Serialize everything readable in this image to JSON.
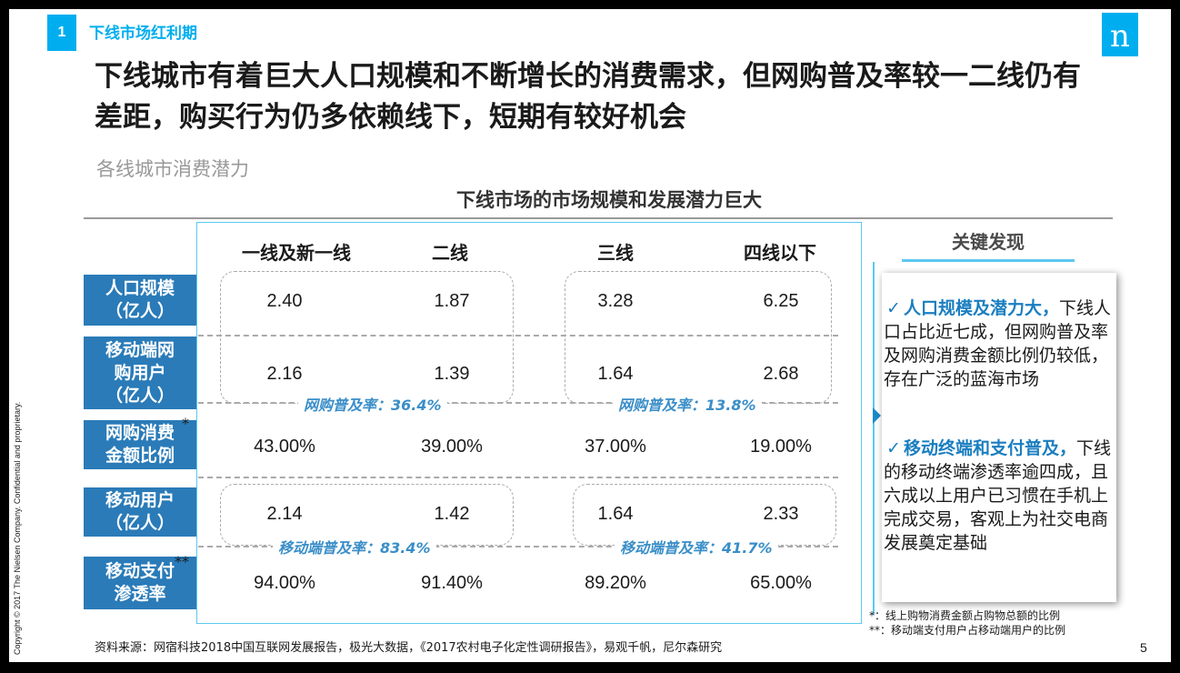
{
  "copyright": "Copyright © 2017 The Nielsen Company. Confidential and proprietary.",
  "section": {
    "number": "1",
    "title": "下线市场红利期"
  },
  "logo_letter": "n",
  "headline": "下线城市有着巨大人口规模和不断增长的消费需求，但网购普及率较一二线仍有差距，购买行为仍多依赖线下，短期有较好机会",
  "subhead": "各线城市消费潜力",
  "table": {
    "title": "下线市场的市场规模和发展潜力巨大",
    "columns": [
      "一线及新一线",
      "二线",
      "三线",
      "四线以下"
    ],
    "rows": [
      {
        "label": "人口规模\n（亿人）",
        "values": [
          "2.40",
          "1.87",
          "3.28",
          "6.25"
        ]
      },
      {
        "label": "移动端网\n购用户\n（亿人）",
        "values": [
          "2.16",
          "1.39",
          "1.64",
          "2.68"
        ]
      },
      {
        "label": "网购消费\n金额比例",
        "star": "*",
        "values": [
          "43.00%",
          "39.00%",
          "37.00%",
          "19.00%"
        ]
      },
      {
        "label": "移动用户\n（亿人）",
        "values": [
          "2.14",
          "1.42",
          "1.64",
          "2.33"
        ]
      },
      {
        "label": "移动支付\n渗透率",
        "star": "**",
        "values": [
          "94.00%",
          "91.40%",
          "89.20%",
          "65.00%"
        ]
      }
    ],
    "rates": {
      "online_left": "网购普及率：36.4%",
      "online_right": "网购普及率：13.8%",
      "mobile_left": "移动端普及率：83.4%",
      "mobile_right": "移动端普及率：41.7%"
    }
  },
  "key_findings": {
    "title": "关键发现",
    "items": [
      {
        "check": "✓",
        "highlight": "人口规模及潜力大，",
        "text": "下线人口占比近七成，但网购普及率及网购消费金额比例仍较低，存在广泛的蓝海市场"
      },
      {
        "check": "✓",
        "highlight": "移动终端和支付普及，",
        "text": "下线的移动终端渗透率逾四成，且六成以上用户已习惯在手机上完成交易，客观上为社交电商发展奠定基础"
      }
    ]
  },
  "footnotes": [
    "*：线上购物消费金额占购物总额的比例",
    "**：移动端支付用户占移动端用户的比例"
  ],
  "source": "资料来源：网宿科技2018中国互联网发展报告，极光大数据，《2017农村电子化定性调研报告》，易观千帆，尼尔森研究",
  "page_number": "5",
  "colors": {
    "accent": "#00aeef",
    "row_label_bg": "#2a7bb8",
    "rate_text": "#3a8ec8",
    "text": "#1a1a1a"
  }
}
